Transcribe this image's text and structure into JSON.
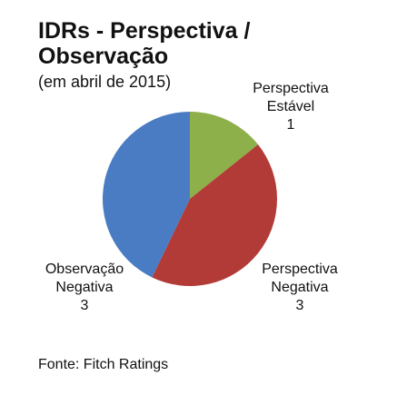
{
  "chart_data": {
    "type": "pie",
    "title": "IDRs - Perspectiva / Observação",
    "subtitle": "(em abril de 2015)",
    "categories": [
      "Perspectiva Estável",
      "Perspectiva Negativa",
      "Observação Negativa"
    ],
    "values": [
      1,
      3,
      3
    ],
    "colors": [
      "#8db04a",
      "#b23b38",
      "#4a7cc4"
    ],
    "source": "Fonte: Fitch Ratings"
  }
}
